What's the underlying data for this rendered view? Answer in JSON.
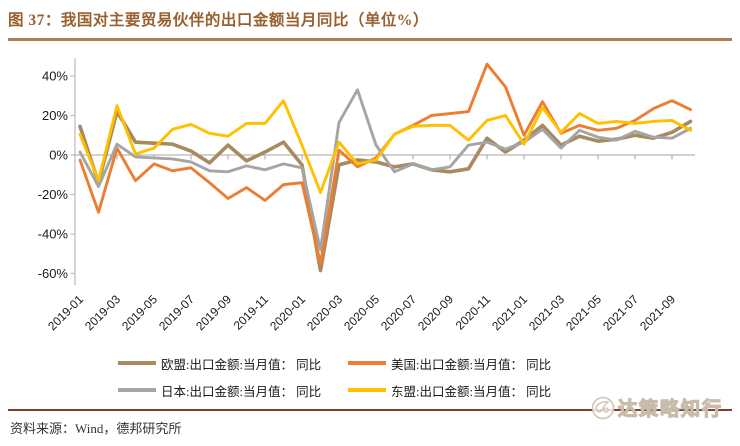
{
  "title": "图 37：我国对主要贸易伙伴的出口金额当月同比（单位%）",
  "source_note": "资料来源：Wind，德邦研究所",
  "watermark": {
    "text": "达策略知行",
    "icon": "compass-logo-icon"
  },
  "colors": {
    "title_brown": "#99602F",
    "rule_top": "#AD7E52",
    "rule_bottom": "#7E3F2B",
    "axis_line": "#BFBFBF",
    "zero_line": "#A6A6A6",
    "tick_text": "#1a1a1a"
  },
  "chart_data": {
    "type": "line",
    "x": [
      "2019-01",
      "2019-02",
      "2019-03",
      "2019-04",
      "2019-05",
      "2019-06",
      "2019-07",
      "2019-08",
      "2019-09",
      "2019-10",
      "2019-11",
      "2019-12",
      "2020-01",
      "2020-02",
      "2020-03",
      "2020-04",
      "2020-05",
      "2020-06",
      "2020-07",
      "2020-08",
      "2020-09",
      "2020-10",
      "2020-11",
      "2020-12",
      "2021-01",
      "2021-02",
      "2021-03",
      "2021-04",
      "2021-05",
      "2021-06",
      "2021-07",
      "2021-08",
      "2021-09",
      "2021-10"
    ],
    "x_tick_label_every": 2,
    "ylim": [
      -60,
      40
    ],
    "y_tick_values": [
      40,
      20,
      0,
      -20,
      -40,
      -60
    ],
    "y_tick_labels": [
      "40%",
      "20%",
      "0%",
      "-20%",
      "-40%",
      "-60%"
    ],
    "grid": "zero-line-only",
    "legend_position": "bottom",
    "series": [
      {
        "name": "欧盟:出口金额:当月值： 同比",
        "color": "#A78A5E",
        "values": [
          14.5,
          -14,
          22,
          6.5,
          6,
          5.5,
          2,
          -4,
          5,
          -3,
          1.5,
          6.5,
          -5,
          -58.5,
          -5,
          -2.5,
          -3.5,
          -6,
          -4.5,
          -7.5,
          -8.5,
          -7,
          8.5,
          1.5,
          7.5,
          15,
          5,
          9.5,
          7,
          8,
          10,
          8.5,
          11.5,
          17
        ]
      },
      {
        "name": "美国:出口金额:当月值： 同比",
        "color": "#ED7D31",
        "values": [
          -2.5,
          -29,
          3.5,
          -13,
          -4.5,
          -8,
          -6.5,
          -14,
          -22,
          -16.5,
          -23,
          -15,
          -14,
          -55,
          2.5,
          -6,
          -1.5,
          10.5,
          15,
          20,
          21,
          22,
          46,
          34.5,
          10,
          27,
          11,
          15,
          12.5,
          13.5,
          17.5,
          23.5,
          27.5,
          23
        ]
      },
      {
        "name": "日本:出口金额:当月值： 同比",
        "color": "#A5A5A5",
        "values": [
          1.5,
          -16,
          5.5,
          -1,
          -1.5,
          -2,
          -3.5,
          -8,
          -8.5,
          -5.5,
          -7.5,
          -4.5,
          -6.5,
          -48,
          16.5,
          33,
          5,
          -8.5,
          -4.5,
          -7.5,
          -6,
          5,
          6.5,
          3,
          6.5,
          13,
          3.5,
          12.5,
          9,
          7.5,
          12,
          9,
          8.5,
          13.5
        ]
      },
      {
        "name": "东盟:出口金额:当月值： 同比",
        "color": "#FFC000",
        "values": [
          10.5,
          -13,
          25,
          0.5,
          3.5,
          13,
          15.5,
          11,
          9.5,
          16,
          16,
          27.5,
          5,
          -19,
          6.5,
          -4.5,
          -2.5,
          10.5,
          14.5,
          15,
          15,
          7.5,
          17.5,
          20,
          5.5,
          24,
          11.5,
          21,
          16,
          17,
          16,
          17,
          17.5,
          12.5
        ]
      }
    ]
  }
}
